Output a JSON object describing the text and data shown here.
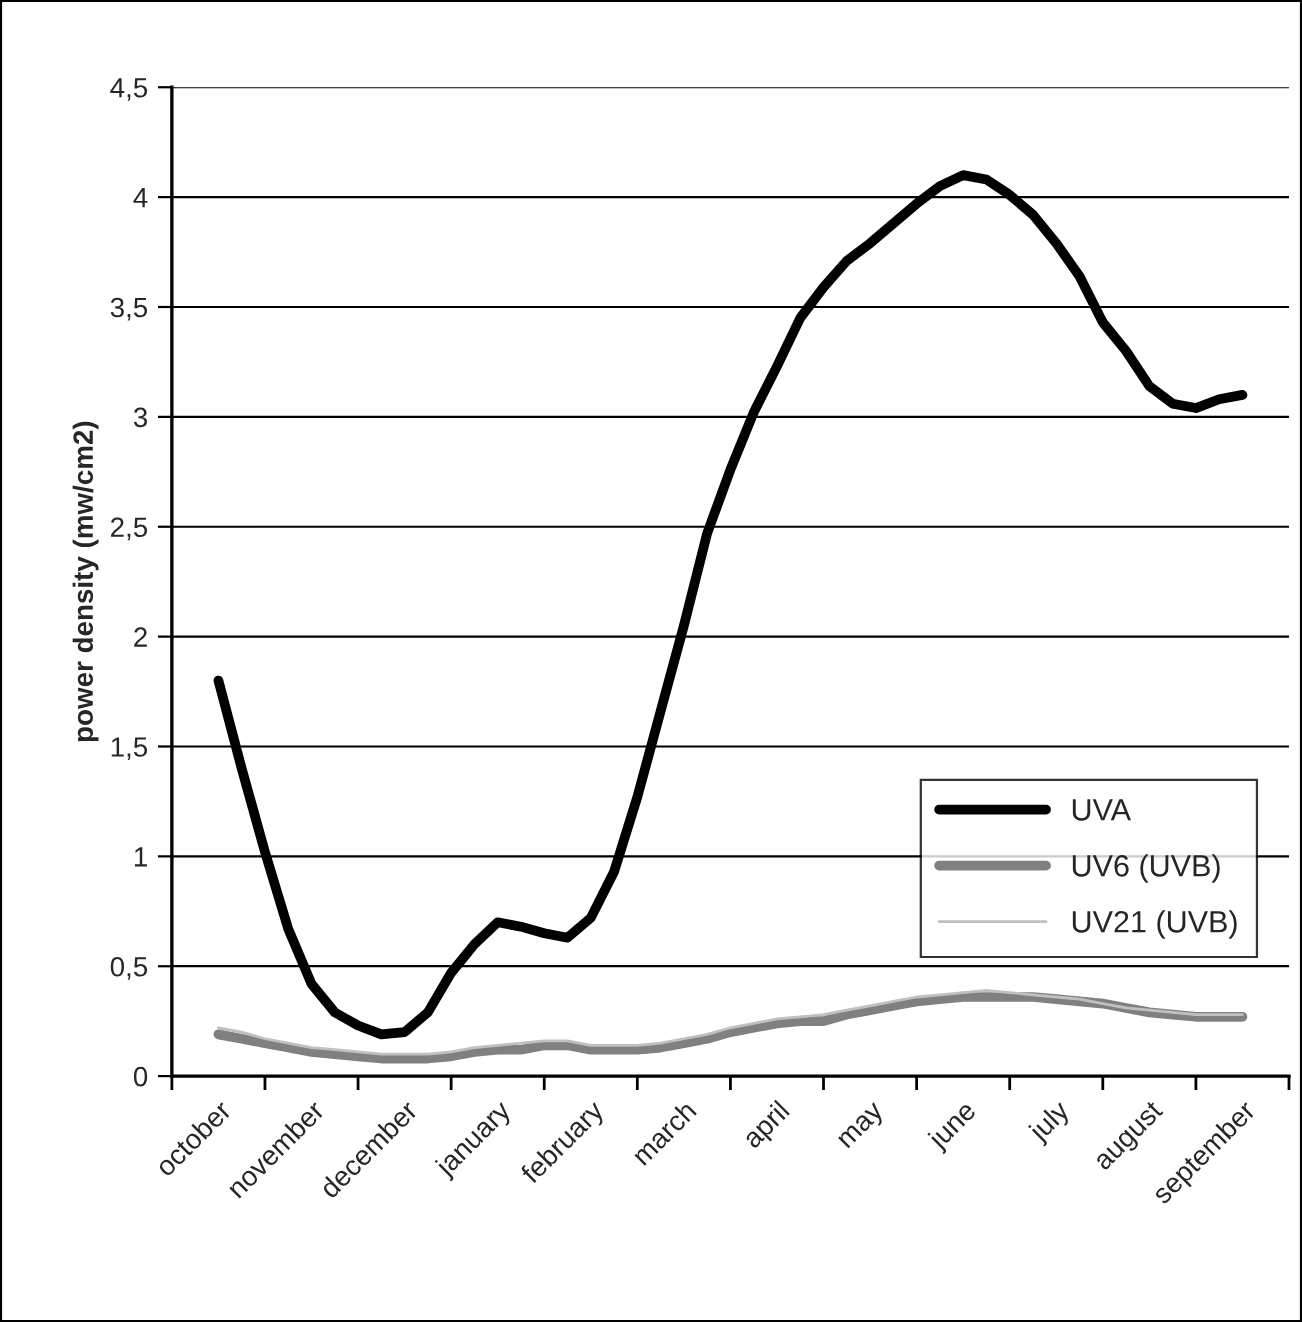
{
  "chart_data": {
    "type": "line",
    "ylabel": "power density (mw/cm2)",
    "categories": [
      "october",
      null,
      null,
      null,
      "november",
      null,
      null,
      null,
      "december",
      null,
      null,
      null,
      "january",
      null,
      null,
      null,
      "february",
      null,
      null,
      null,
      "march",
      null,
      null,
      null,
      "april",
      null,
      null,
      null,
      "may",
      null,
      null,
      null,
      "june",
      null,
      null,
      null,
      "july",
      null,
      null,
      null,
      "august",
      null,
      null,
      null,
      "september"
    ],
    "series": [
      {
        "name": "UVA",
        "color": "#000000",
        "values": [
          1.8,
          1.4,
          1.02,
          0.67,
          0.42,
          0.29,
          0.23,
          0.19,
          0.2,
          0.29,
          0.47,
          0.6,
          0.7,
          0.68,
          0.65,
          0.63,
          0.72,
          0.93,
          1.27,
          1.66,
          2.05,
          2.47,
          2.76,
          3.02,
          3.23,
          3.45,
          3.59,
          3.71,
          3.79,
          3.88,
          3.97,
          4.05,
          4.1,
          4.08,
          4.01,
          3.92,
          3.79,
          3.64,
          3.43,
          3.3,
          3.14,
          3.06,
          3.04,
          3.08,
          3.1
        ]
      },
      {
        "name": "UV6 (UVB)",
        "color": "#808080",
        "values": [
          0.19,
          0.17,
          0.15,
          0.13,
          0.11,
          0.1,
          0.09,
          0.08,
          0.08,
          0.08,
          0.09,
          0.11,
          0.12,
          0.12,
          0.14,
          0.14,
          0.12,
          0.12,
          0.12,
          0.13,
          0.15,
          0.17,
          0.2,
          0.22,
          0.24,
          0.25,
          0.25,
          0.28,
          0.3,
          0.32,
          0.34,
          0.35,
          0.36,
          0.36,
          0.36,
          0.36,
          0.35,
          0.34,
          0.33,
          0.31,
          0.29,
          0.28,
          0.27,
          0.27,
          0.27
        ]
      },
      {
        "name": "UV21 (UVB)",
        "color": "#c0c0c0",
        "values": [
          0.22,
          0.2,
          0.17,
          0.15,
          0.13,
          0.12,
          0.11,
          0.1,
          0.1,
          0.1,
          0.11,
          0.13,
          0.14,
          0.15,
          0.16,
          0.16,
          0.14,
          0.14,
          0.14,
          0.15,
          0.17,
          0.19,
          0.22,
          0.24,
          0.26,
          0.27,
          0.28,
          0.3,
          0.32,
          0.34,
          0.36,
          0.37,
          0.38,
          0.39,
          0.38,
          0.37,
          0.36,
          0.35,
          0.33,
          0.31,
          0.3,
          0.29,
          0.28,
          0.28,
          0.28
        ]
      }
    ],
    "ylim": [
      0,
      4.5
    ],
    "yticks": [
      0,
      {
        "value": 0.5,
        "label": "0,5"
      },
      1,
      {
        "value": 1.5,
        "label": "1,5"
      },
      2,
      {
        "value": 2.5,
        "label": "2,5"
      },
      3,
      {
        "value": 3.5,
        "label": "3,5"
      },
      4,
      {
        "value": 4.5,
        "label": "4,5"
      }
    ],
    "grid": "y",
    "legend": "lower right",
    "marker": "none",
    "line_style": "solid"
  }
}
